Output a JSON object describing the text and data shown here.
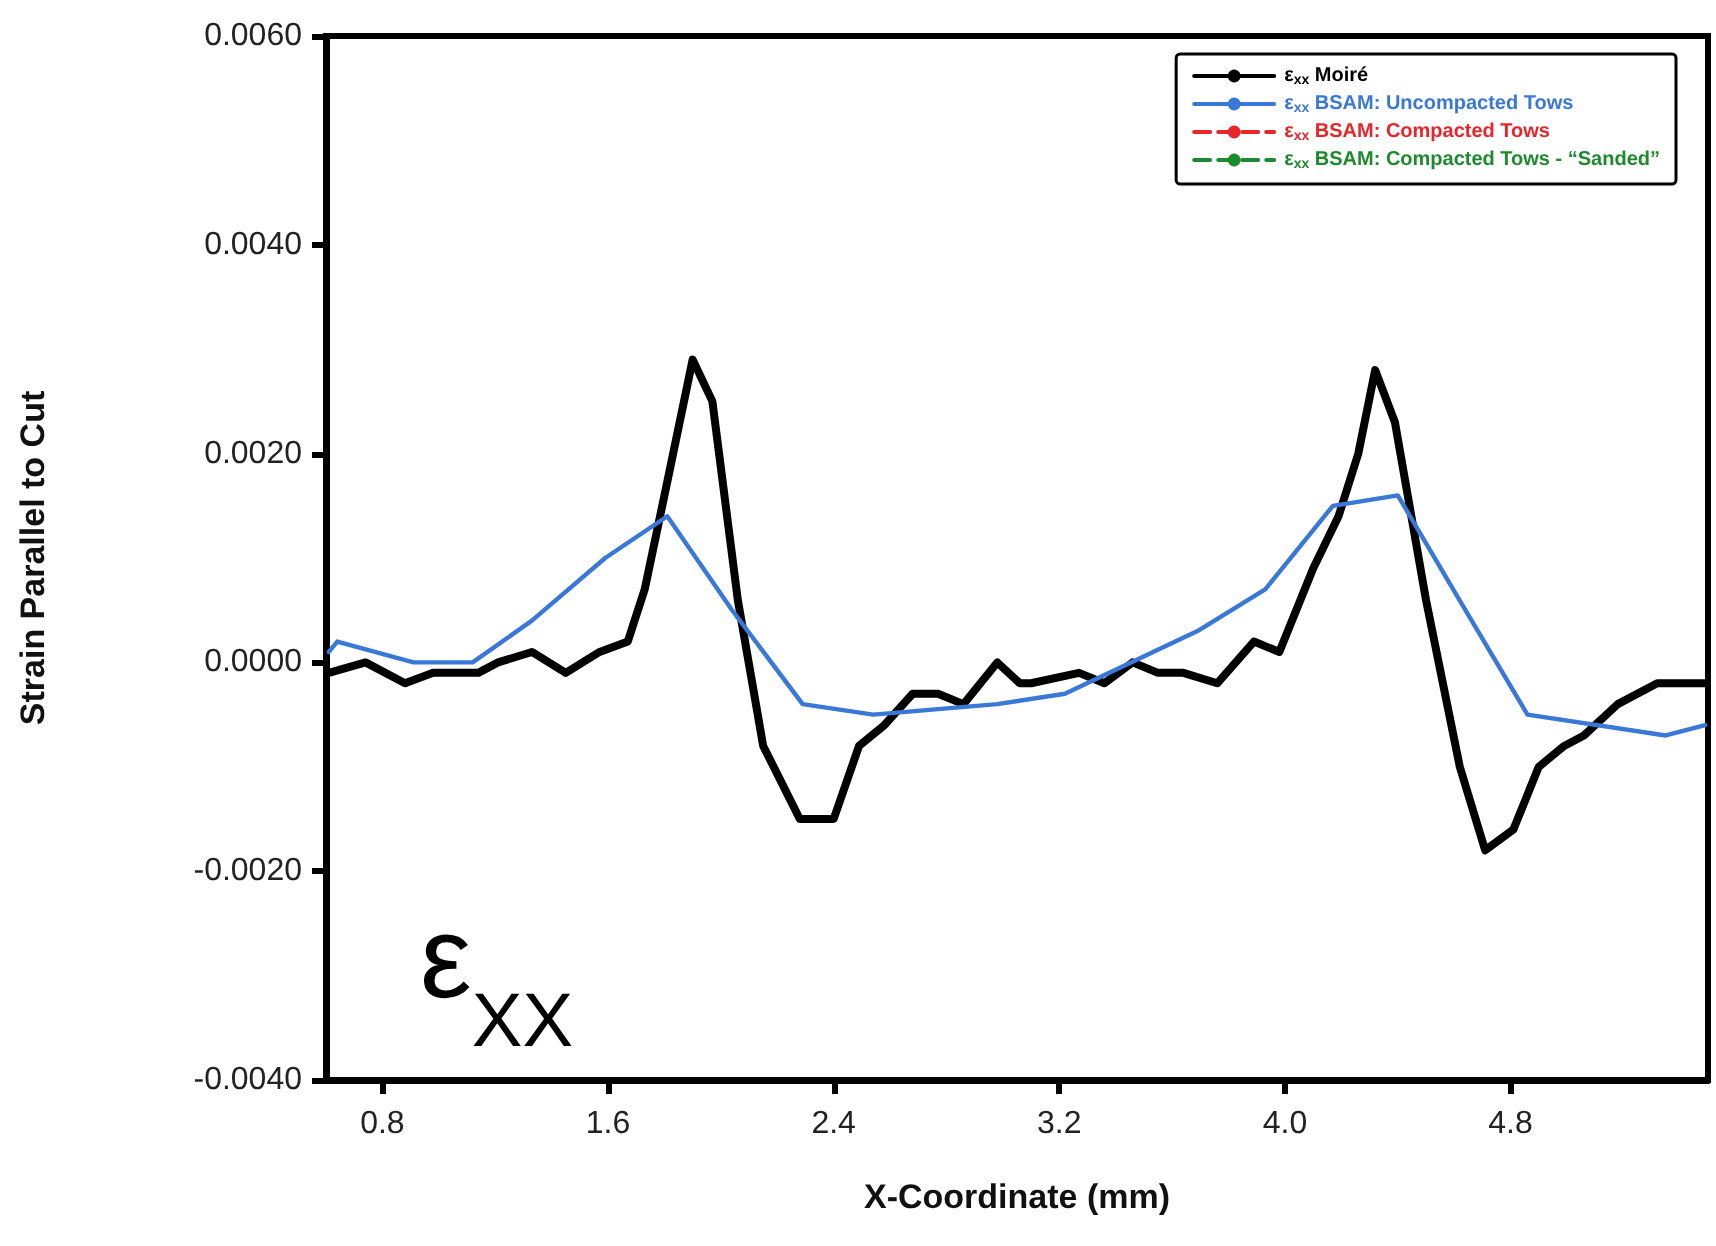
{
  "chart_data": {
    "type": "line",
    "xlabel": "X-Coordinate (mm)",
    "ylabel": "Strain Parallel to Cut",
    "annotations": [
      "ε$_{XX}$"
    ],
    "xlim": [
      0.6,
      5.5
    ],
    "xticks": [
      0.8,
      1.6,
      2.4,
      3.2,
      {
        "value": 4.0,
        "label": "4.0"
      },
      4.8
    ],
    "ylim": [
      -0.004,
      0.006
    ],
    "yticks": [
      {
        "value": -0.004,
        "label": "-0.0040"
      },
      {
        "value": -0.002,
        "label": "-0.0020"
      },
      {
        "value": 0,
        "label": "0.0000"
      },
      {
        "value": 0.002,
        "label": "0.0020"
      },
      {
        "value": 0.004,
        "label": "0.0040"
      },
      {
        "value": 0.006,
        "label": "0.0060"
      }
    ],
    "legend": "top right",
    "marker": "none",
    "series": [
      {
        "name": "ε$_{xx}$ Moiré",
        "color": "#000000",
        "line_style": "solid",
        "x": [
          0.61,
          0.74,
          0.88,
          0.98,
          1.14,
          1.21,
          1.33,
          1.45,
          1.57,
          1.67,
          1.73,
          1.8,
          1.9,
          1.97,
          2.06,
          2.15,
          2.28,
          2.4,
          2.49,
          2.58,
          2.68,
          2.77,
          2.86,
          2.98,
          3.06,
          3.1,
          3.27,
          3.36,
          3.46,
          3.55,
          3.64,
          3.76,
          3.89,
          3.98,
          4.1,
          4.19,
          4.26,
          4.32,
          4.39,
          4.5,
          4.62,
          4.71,
          4.81,
          4.9,
          4.99,
          5.06,
          5.18,
          5.32,
          5.4,
          5.49
        ],
        "values": [
          -0.0001,
          0,
          -0.0002,
          -0.0001,
          -0.0001,
          0,
          0.0001,
          -0.0001,
          0.0001,
          0.0002,
          0.0007,
          0.0016,
          0.0029,
          0.0025,
          0.0006,
          -0.0008,
          -0.0015,
          -0.0015,
          -0.0008,
          -0.0006,
          -0.0003,
          -0.0003,
          -0.0004,
          0,
          -0.0002,
          -0.0002,
          -0.0001,
          -0.0002,
          0,
          -0.0001,
          -0.0001,
          -0.0002,
          0.0002,
          0.0001,
          0.0009,
          0.0014,
          0.002,
          0.0028,
          0.0023,
          0.0006,
          -0.001,
          -0.0018,
          -0.0016,
          -0.001,
          -0.0008,
          -0.0007,
          -0.0004,
          -0.0002,
          -0.0002,
          -0.0002
        ]
      },
      {
        "name": "ε$_{xx}$ BSAM: Uncompacted Tows",
        "color": "#3a78d8",
        "line_style": "solid",
        "x": [
          0.61,
          0.64,
          0.91,
          1.12,
          1.33,
          1.59,
          1.81,
          2.04,
          2.29,
          2.54,
          2.98,
          3.22,
          3.69,
          3.93,
          4.17,
          4.4,
          4.64,
          4.86,
          5.35,
          5.49
        ],
        "values": [
          0.0001,
          0.0002,
          0,
          0,
          0.0004,
          0.001,
          0.0014,
          0.0005,
          -0.0004,
          -0.0005,
          -0.0004,
          -0.0003,
          0.0003,
          0.0007,
          0.0015,
          0.0016,
          0.0005,
          -0.0005,
          -0.0007,
          -0.0006
        ]
      },
      {
        "name": "ε$_{xx}$ BSAM: Compacted Tows",
        "color": "#e8262a",
        "line_style": "dashed"
      },
      {
        "name": "ε$_{xx}$ BSAM: Compacted Tows - “Sanded”",
        "color": "#1e8a2e",
        "line_style": "dashed"
      }
    ]
  }
}
